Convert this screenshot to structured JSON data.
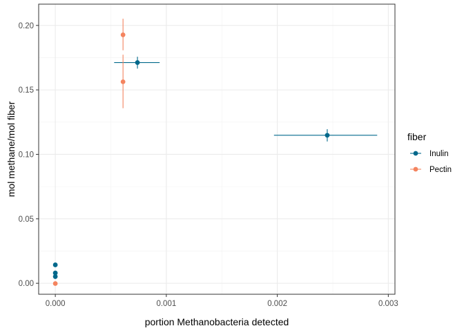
{
  "chart_data": {
    "type": "scatter",
    "xlabel": "portion Methanobacteria detected",
    "ylabel": "mol methane/mol fiber",
    "xlim": [
      -0.00015,
      0.00306
    ],
    "ylim": [
      -0.0085,
      0.2165
    ],
    "x_ticks": [
      0.0,
      0.001,
      0.002,
      0.003
    ],
    "x_tick_labels": [
      "0.000",
      "0.001",
      "0.002",
      "0.003"
    ],
    "y_ticks": [
      0.0,
      0.05,
      0.1,
      0.15,
      0.2
    ],
    "y_tick_labels": [
      "0.00",
      "0.05",
      "0.10",
      "0.15",
      "0.20"
    ],
    "grid": true,
    "legend": {
      "title": "fiber",
      "position": "right"
    },
    "series": [
      {
        "name": "Inulin",
        "color": "#00688b",
        "points": [
          {
            "x": 0.00074,
            "y": 0.1712,
            "xmin": 0.00053,
            "xmax": 0.00094,
            "ymin": 0.1665,
            "ymax": 0.1757
          },
          {
            "x": 0.00245,
            "y": 0.1148,
            "xmin": 0.00197,
            "xmax": 0.0029,
            "ymin": 0.11,
            "ymax": 0.1195
          },
          {
            "x": 0.0,
            "y": 0.0143
          },
          {
            "x": 0.0,
            "y": 0.008
          },
          {
            "x": 0.0,
            "y": 0.0052
          }
        ]
      },
      {
        "name": "Pectin",
        "color": "#f4845f",
        "points": [
          {
            "x": 0.00061,
            "y": 0.1927,
            "ymin": 0.1807,
            "ymax": 0.2052
          },
          {
            "x": 0.00061,
            "y": 0.1563,
            "ymin": 0.1358,
            "ymax": 0.1773
          },
          {
            "x": 0.0,
            "y": -0.0002
          }
        ]
      }
    ]
  }
}
